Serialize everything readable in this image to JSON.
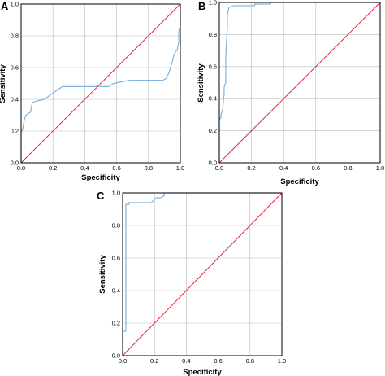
{
  "chart_data": [
    {
      "panel": "A",
      "type": "line",
      "xlabel": "Specificity",
      "ylabel": "Sensitivity",
      "xlim": [
        0.0,
        1.0
      ],
      "ylim": [
        0.0,
        1.0
      ],
      "xticks": [
        "0.0",
        "0.2",
        "0.4",
        "0.6",
        "0.8",
        "1.0"
      ],
      "yticks": [
        "0.0",
        "0.2",
        "0.4",
        "0.6",
        "0.8",
        "1.0"
      ],
      "grid": true,
      "legend": "none",
      "series": [
        {
          "color": "#7fb2de",
          "points": [
            [
              0.0,
              0.0
            ],
            [
              0.0,
              0.19
            ],
            [
              0.01,
              0.21
            ],
            [
              0.02,
              0.27
            ],
            [
              0.03,
              0.3
            ],
            [
              0.06,
              0.32
            ],
            [
              0.07,
              0.38
            ],
            [
              0.1,
              0.39
            ],
            [
              0.15,
              0.4
            ],
            [
              0.16,
              0.41
            ],
            [
              0.2,
              0.44
            ],
            [
              0.26,
              0.48
            ],
            [
              0.4,
              0.48
            ],
            [
              0.55,
              0.48
            ],
            [
              0.58,
              0.5
            ],
            [
              0.68,
              0.52
            ],
            [
              0.79,
              0.52
            ],
            [
              0.89,
              0.52
            ],
            [
              0.91,
              0.53
            ],
            [
              0.93,
              0.57
            ],
            [
              0.95,
              0.64
            ],
            [
              0.96,
              0.68
            ],
            [
              0.97,
              0.7
            ],
            [
              0.98,
              0.71
            ],
            [
              0.99,
              0.76
            ],
            [
              0.99,
              0.83
            ],
            [
              1.0,
              0.86
            ],
            [
              1.0,
              1.0
            ]
          ]
        },
        {
          "color": "#e8233f",
          "points": [
            [
              0.0,
              0.0
            ],
            [
              1.0,
              1.0
            ]
          ]
        }
      ]
    },
    {
      "panel": "B",
      "type": "line",
      "xlabel": "Specificity",
      "ylabel": "Sensitivity",
      "xlim": [
        0.0,
        1.0
      ],
      "ylim": [
        0.0,
        1.0
      ],
      "xticks": [
        "0.0",
        "0.2",
        "0.4",
        "0.6",
        "0.8",
        "1.0"
      ],
      "yticks": [
        "0.0",
        "0.2",
        "0.4",
        "0.6",
        "0.8",
        "1.0"
      ],
      "grid": true,
      "legend": "none",
      "series": [
        {
          "color": "#7fb2de",
          "points": [
            [
              0.0,
              0.0
            ],
            [
              0.0,
              0.27
            ],
            [
              0.01,
              0.28
            ],
            [
              0.01,
              0.3
            ],
            [
              0.02,
              0.33
            ],
            [
              0.03,
              0.43
            ],
            [
              0.03,
              0.47
            ],
            [
              0.04,
              0.5
            ],
            [
              0.04,
              0.66
            ],
            [
              0.05,
              0.85
            ],
            [
              0.05,
              0.92
            ],
            [
              0.06,
              0.97
            ],
            [
              0.09,
              0.98
            ],
            [
              0.22,
              0.98
            ],
            [
              0.22,
              0.99
            ],
            [
              0.32,
              0.99
            ],
            [
              0.32,
              1.0
            ],
            [
              1.0,
              1.0
            ]
          ]
        },
        {
          "color": "#e8233f",
          "points": [
            [
              0.0,
              0.0
            ],
            [
              1.0,
              1.0
            ]
          ]
        }
      ]
    },
    {
      "panel": "C",
      "type": "line",
      "xlabel": "Specificity",
      "ylabel": "Sensitivity",
      "xlim": [
        0.0,
        1.0
      ],
      "ylim": [
        0.0,
        1.0
      ],
      "xticks": [
        "0.0",
        "0.2",
        "0.4",
        "0.6",
        "0.8",
        "1.0"
      ],
      "yticks": [
        "0.0",
        "0.2",
        "0.4",
        "0.6",
        "0.8",
        "1.0"
      ],
      "grid": true,
      "legend": "none",
      "series": [
        {
          "color": "#7fb2de",
          "points": [
            [
              0.0,
              0.0
            ],
            [
              0.0,
              0.15
            ],
            [
              0.02,
              0.15
            ],
            [
              0.02,
              0.93
            ],
            [
              0.04,
              0.93
            ],
            [
              0.04,
              0.94
            ],
            [
              0.18,
              0.94
            ],
            [
              0.2,
              0.96
            ],
            [
              0.21,
              0.97
            ],
            [
              0.24,
              0.97
            ],
            [
              0.25,
              0.98
            ],
            [
              0.26,
              0.98
            ],
            [
              0.26,
              1.0
            ],
            [
              1.0,
              1.0
            ]
          ]
        },
        {
          "color": "#e8233f",
          "points": [
            [
              0.0,
              0.0
            ],
            [
              1.0,
              1.0
            ]
          ]
        }
      ]
    }
  ]
}
